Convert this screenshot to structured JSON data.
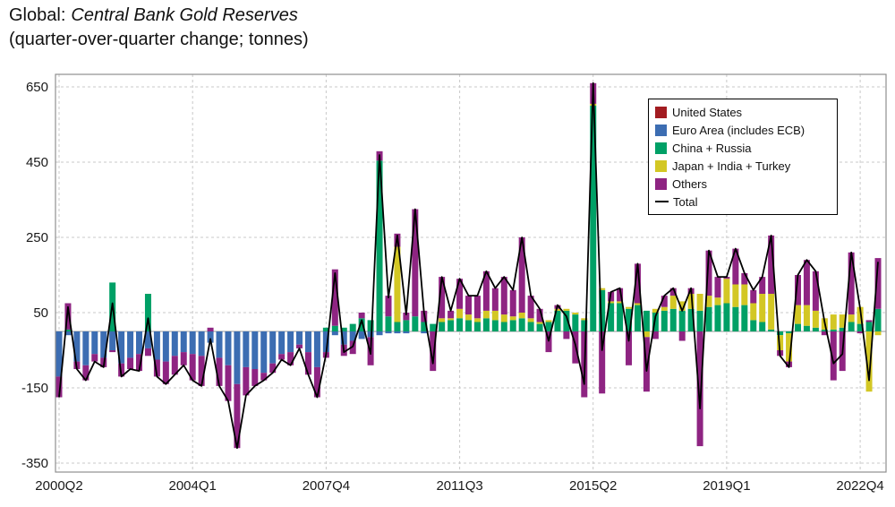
{
  "chart_data": {
    "type": "bar",
    "stacked": true,
    "title": {
      "prefix": "Global:",
      "main": "Central Bank Gold Reserves",
      "subtitle": "(quarter-over-quarter change; tonnes)"
    },
    "xlabel": "",
    "ylabel": "",
    "ylim": [
      -350,
      650
    ],
    "y_ticks": [
      650,
      450,
      250,
      50,
      -150,
      -350
    ],
    "grid": "dashed",
    "legend_position": "top-right",
    "x_tick_labels": [
      "2000Q2",
      "2004Q1",
      "2007Q4",
      "2011Q3",
      "2015Q2",
      "2019Q1",
      "2022Q4"
    ],
    "x_tick_indices": [
      0,
      15,
      30,
      45,
      60,
      75,
      90
    ],
    "x": [
      "2000Q2",
      "2000Q3",
      "2000Q4",
      "2001Q1",
      "2001Q2",
      "2001Q3",
      "2001Q4",
      "2002Q1",
      "2002Q2",
      "2002Q3",
      "2002Q4",
      "2003Q1",
      "2003Q2",
      "2003Q3",
      "2003Q4",
      "2004Q1",
      "2004Q2",
      "2004Q3",
      "2004Q4",
      "2005Q1",
      "2005Q2",
      "2005Q3",
      "2005Q4",
      "2006Q1",
      "2006Q2",
      "2006Q3",
      "2006Q4",
      "2007Q1",
      "2007Q2",
      "2007Q3",
      "2007Q4",
      "2008Q1",
      "2008Q2",
      "2008Q3",
      "2008Q4",
      "2009Q1",
      "2009Q2",
      "2009Q3",
      "2009Q4",
      "2010Q1",
      "2010Q2",
      "2010Q3",
      "2010Q4",
      "2011Q1",
      "2011Q2",
      "2011Q3",
      "2011Q4",
      "2012Q1",
      "2012Q2",
      "2012Q3",
      "2012Q4",
      "2013Q1",
      "2013Q2",
      "2013Q3",
      "2013Q4",
      "2014Q1",
      "2014Q2",
      "2014Q3",
      "2014Q4",
      "2015Q1",
      "2015Q2",
      "2015Q3",
      "2015Q4",
      "2016Q1",
      "2016Q2",
      "2016Q3",
      "2016Q4",
      "2017Q1",
      "2017Q2",
      "2017Q3",
      "2017Q4",
      "2018Q1",
      "2018Q2",
      "2018Q3",
      "2018Q4",
      "2019Q1",
      "2019Q2",
      "2019Q3",
      "2019Q4",
      "2020Q1",
      "2020Q2",
      "2020Q3",
      "2020Q4",
      "2021Q1",
      "2021Q2",
      "2021Q3",
      "2021Q4",
      "2022Q1",
      "2022Q2",
      "2022Q3",
      "2022Q4",
      "2023Q1",
      "2023Q2"
    ],
    "series": [
      {
        "name": "United States",
        "color": "#a21c21",
        "values": [
          0,
          0,
          0,
          0,
          0,
          0,
          0,
          0,
          0,
          0,
          0,
          0,
          0,
          0,
          0,
          0,
          0,
          0,
          0,
          0,
          0,
          0,
          0,
          0,
          0,
          0,
          0,
          0,
          0,
          0,
          0,
          0,
          0,
          0,
          0,
          0,
          0,
          0,
          0,
          0,
          0,
          0,
          0,
          0,
          0,
          0,
          0,
          0,
          0,
          0,
          0,
          0,
          0,
          0,
          0,
          0,
          0,
          0,
          0,
          0,
          0,
          0,
          0,
          0,
          0,
          0,
          0,
          0,
          0,
          0,
          0,
          0,
          0,
          0,
          0,
          0,
          0,
          0,
          0,
          0,
          0,
          0,
          0,
          0,
          0,
          0,
          0,
          0,
          0,
          0,
          0,
          0,
          0
        ]
      },
      {
        "name": "Euro Area (includes ECB)",
        "color": "#3c6db2",
        "values": [
          -120,
          -10,
          -80,
          -90,
          -60,
          -70,
          -50,
          -85,
          -70,
          -60,
          -45,
          -75,
          -80,
          -65,
          -55,
          -60,
          -65,
          -30,
          -70,
          -90,
          -140,
          -95,
          -100,
          -110,
          -85,
          -60,
          -55,
          -35,
          -55,
          -95,
          -55,
          -10,
          -35,
          -25,
          -20,
          -15,
          -10,
          -5,
          -5,
          -5,
          0,
          -5,
          0,
          0,
          0,
          0,
          0,
          0,
          0,
          0,
          0,
          0,
          0,
          0,
          0,
          0,
          0,
          0,
          0,
          0,
          0,
          0,
          0,
          0,
          0,
          0,
          0,
          0,
          0,
          0,
          0,
          0,
          0,
          0,
          0,
          0,
          0,
          0,
          0,
          0,
          0,
          0,
          0,
          0,
          0,
          0,
          0,
          0,
          0,
          0,
          0,
          0,
          0
        ]
      },
      {
        "name": "China + Russia",
        "color": "#00a066",
        "values": [
          0,
          5,
          0,
          0,
          0,
          0,
          130,
          0,
          0,
          0,
          100,
          0,
          0,
          0,
          0,
          0,
          0,
          0,
          0,
          0,
          0,
          0,
          0,
          0,
          0,
          0,
          0,
          0,
          0,
          0,
          10,
          15,
          10,
          20,
          35,
          30,
          454,
          40,
          25,
          30,
          40,
          25,
          20,
          25,
          30,
          35,
          30,
          25,
          35,
          30,
          25,
          30,
          35,
          25,
          20,
          25,
          55,
          55,
          45,
          30,
          600,
          110,
          75,
          75,
          60,
          70,
          55,
          50,
          55,
          60,
          55,
          60,
          55,
          65,
          70,
          75,
          65,
          70,
          30,
          25,
          5,
          -10,
          -5,
          20,
          15,
          10,
          5,
          5,
          10,
          25,
          20,
          25,
          60
        ]
      },
      {
        "name": "Japan + India + Turkey",
        "color": "#d3c724",
        "values": [
          0,
          0,
          0,
          0,
          0,
          0,
          0,
          0,
          0,
          0,
          0,
          0,
          0,
          0,
          0,
          0,
          0,
          0,
          0,
          0,
          0,
          0,
          0,
          0,
          0,
          0,
          0,
          0,
          0,
          0,
          0,
          0,
          0,
          0,
          0,
          0,
          0,
          0,
          200,
          0,
          0,
          0,
          0,
          10,
          5,
          25,
          15,
          10,
          20,
          25,
          20,
          10,
          15,
          10,
          5,
          5,
          5,
          5,
          5,
          5,
          5,
          5,
          5,
          5,
          5,
          5,
          -15,
          10,
          10,
          35,
          25,
          40,
          45,
          30,
          20,
          65,
          60,
          55,
          45,
          75,
          95,
          -40,
          -75,
          50,
          55,
          45,
          30,
          40,
          35,
          20,
          45,
          -160,
          -10
        ]
      },
      {
        "name": "Others",
        "color": "#8e2482",
        "values": [
          -55,
          70,
          -20,
          -40,
          -20,
          -25,
          -5,
          -35,
          -30,
          -45,
          -20,
          -45,
          -60,
          -50,
          -35,
          -70,
          -80,
          10,
          -75,
          -95,
          -170,
          -75,
          -45,
          -20,
          -25,
          -15,
          -35,
          -10,
          -60,
          -80,
          -15,
          150,
          -30,
          -35,
          15,
          -75,
          25,
          55,
          35,
          20,
          285,
          30,
          -105,
          110,
          20,
          80,
          50,
          60,
          105,
          60,
          100,
          70,
          200,
          60,
          35,
          -55,
          10,
          -20,
          -85,
          -175,
          55,
          -165,
          25,
          35,
          -90,
          105,
          -145,
          -20,
          30,
          20,
          -25,
          15,
          -305,
          120,
          55,
          5,
          95,
          30,
          35,
          45,
          155,
          -15,
          -15,
          80,
          120,
          105,
          -10,
          -130,
          -105,
          165,
          -5,
          5,
          135
        ]
      }
    ],
    "total_line": {
      "name": "Total",
      "color": "#000000"
    }
  }
}
